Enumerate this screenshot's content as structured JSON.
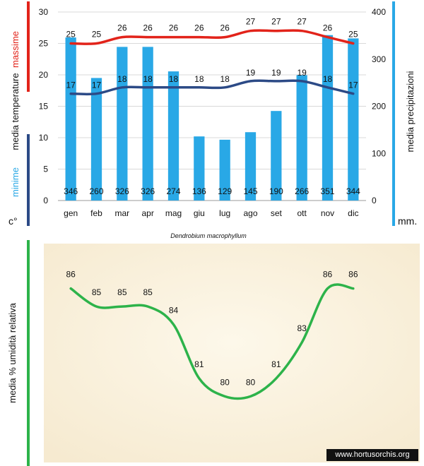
{
  "chart_data": [
    {
      "type": "bar+line",
      "title": "",
      "subtitle": "Dendrobium macrophyllum",
      "categories": [
        "gen",
        "feb",
        "mar",
        "apr",
        "mag",
        "giu",
        "lug",
        "ago",
        "set",
        "ott",
        "nov",
        "dic"
      ],
      "series": [
        {
          "name": "media precipitazioni",
          "type": "bar",
          "axis": "right",
          "unit": "mm.",
          "values": [
            346,
            260,
            326,
            326,
            274,
            136,
            129,
            145,
            190,
            266,
            351,
            344
          ]
        },
        {
          "name": "massime",
          "type": "line",
          "axis": "left",
          "values": [
            25,
            25,
            26,
            26,
            26,
            26,
            26,
            27,
            27,
            27,
            26,
            25
          ]
        },
        {
          "name": "minime",
          "type": "line",
          "axis": "left",
          "values": [
            17,
            17,
            18,
            18,
            18,
            18,
            18,
            19,
            19,
            19,
            18,
            17
          ]
        }
      ],
      "left_axis": {
        "ylim": [
          0,
          30
        ],
        "ticks": [
          0,
          5,
          10,
          15,
          20,
          25,
          30
        ],
        "label_parts": [
          "minime",
          "media  temperature",
          "massime"
        ],
        "unit": "c°"
      },
      "right_axis": {
        "ylim": [
          0,
          400
        ],
        "ticks": [
          0,
          100,
          200,
          300,
          400
        ],
        "label": "media  precipitazioni",
        "unit": "mm."
      },
      "colors": {
        "bars": "#29a8e6",
        "max_line": "#e2231a",
        "min_line": "#2c4a86",
        "minime_text": "#29a8e6",
        "massime_text": "#e2231a",
        "left_bracket_top": "#e2231a",
        "left_bracket_bottom": "#2c4a86",
        "right_bracket": "#29a8e6"
      }
    },
    {
      "type": "line",
      "title": "",
      "categories": [
        "gen",
        "feb",
        "mar",
        "apr",
        "mag",
        "giu",
        "lug",
        "ago",
        "set",
        "ott",
        "nov",
        "dic"
      ],
      "series": [
        {
          "name": "media % umidità relativa",
          "values": [
            86,
            85,
            85,
            85,
            84,
            81,
            80,
            80,
            81,
            83,
            86,
            86
          ]
        }
      ],
      "ylabel": "media %  umidità relativa",
      "ylim": [
        77.5,
        88.5
      ],
      "colors": {
        "line": "#2db34a",
        "axis": "#2db34a",
        "background": "#fbf4e3"
      }
    }
  ],
  "watermark": "www.hortusorchis.org"
}
